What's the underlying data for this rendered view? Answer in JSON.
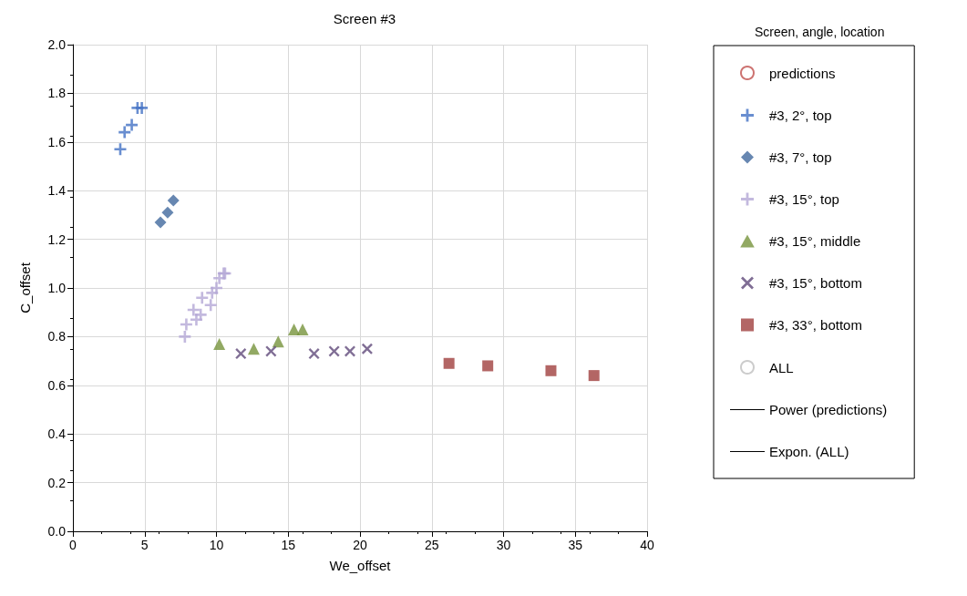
{
  "chart_data": {
    "type": "scatter",
    "title": "Screen #3",
    "xlabel": "We_offset",
    "ylabel": "C_offset",
    "legend_title": "Screen, angle, location",
    "xlim": [
      0,
      40
    ],
    "xticks": [
      0,
      5,
      10,
      15,
      20,
      25,
      30,
      35,
      40
    ],
    "ylim": [
      0,
      2
    ],
    "yticks": [
      {
        "value": 0,
        "label": "0.0"
      },
      {
        "value": 0.2,
        "label": "0.2"
      },
      {
        "value": 0.4,
        "label": "0.4"
      },
      {
        "value": 0.6,
        "label": "0.6"
      },
      {
        "value": 0.8,
        "label": "0.8"
      },
      {
        "value": 1,
        "label": "1.0"
      },
      {
        "value": 1.2,
        "label": "1.2"
      },
      {
        "value": 1.4,
        "label": "1.4"
      },
      {
        "value": 1.6,
        "label": "1.6"
      },
      {
        "value": 1.8,
        "label": "1.8"
      },
      {
        "value": 2,
        "label": "2.0"
      }
    ],
    "grid": true,
    "legend": "right",
    "series": [
      {
        "name": "predictions",
        "color": "#c0504d",
        "marker": "circle"
      },
      {
        "name": "#3, 2°, top",
        "color": "#4472c4",
        "marker": "plus",
        "x": [
          3.3,
          3.6,
          4.1,
          4.5,
          4.8
        ],
        "values": [
          1.57,
          1.64,
          1.67,
          1.74,
          1.74
        ]
      },
      {
        "name": "#3, 7°, top",
        "color": "#41699e",
        "marker": "diamond",
        "x": [
          6.1,
          6.6,
          7.0
        ],
        "values": [
          1.27,
          1.31,
          1.36
        ]
      },
      {
        "name": "#3, 15°, top",
        "color": "#b4a7d6",
        "marker": "plus",
        "x": [
          7.8,
          7.9,
          8.4,
          8.6,
          8.9,
          9.0,
          9.6,
          9.7,
          10.0,
          10.2,
          10.5,
          10.6
        ],
        "values": [
          0.8,
          0.85,
          0.91,
          0.87,
          0.89,
          0.96,
          0.93,
          0.98,
          1.0,
          1.04,
          1.06,
          1.06
        ]
      },
      {
        "name": "#3, 15°, middle",
        "color": "#77933c",
        "marker": "triangle",
        "x": [
          10.2,
          12.6,
          14.3,
          15.4,
          16.0
        ],
        "values": [
          0.77,
          0.75,
          0.78,
          0.83,
          0.83
        ]
      },
      {
        "name": "#3, 15°, bottom",
        "color": "#604a7b",
        "marker": "cross",
        "x": [
          11.7,
          13.8,
          16.8,
          18.2,
          19.3,
          20.5
        ],
        "values": [
          0.73,
          0.74,
          0.73,
          0.74,
          0.74,
          0.75
        ]
      },
      {
        "name": "#3, 33°, bottom",
        "color": "#a0403e",
        "marker": "square",
        "x": [
          26.2,
          28.9,
          33.3,
          36.3
        ],
        "values": [
          0.69,
          0.68,
          0.66,
          0.64
        ]
      },
      {
        "name": "ALL",
        "color": "#bfbfbf",
        "marker": "circle"
      },
      {
        "name": "Power (predictions)",
        "type": "line",
        "color": "#000000",
        "line_style": "solid"
      },
      {
        "name": "Expon. (ALL)",
        "type": "line",
        "color": "#000000",
        "line_style": "solid"
      }
    ]
  }
}
